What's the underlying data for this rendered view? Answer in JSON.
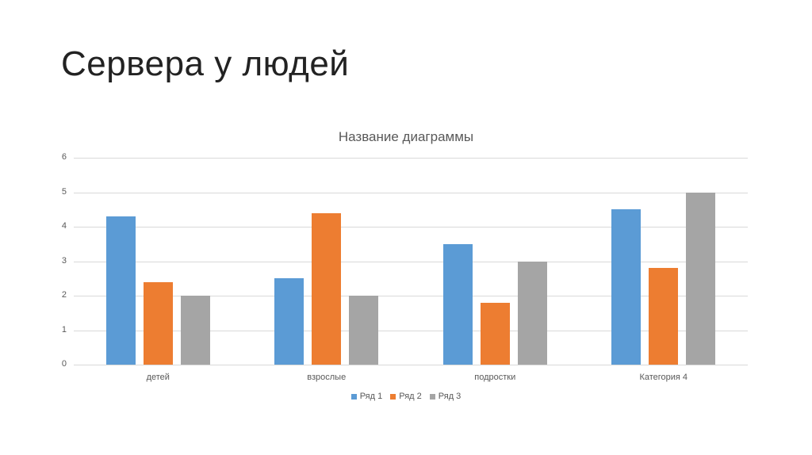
{
  "slide": {
    "title": "Сервера у людей"
  },
  "chart_data": {
    "type": "bar",
    "title": "Название диаграммы",
    "categories": [
      "детей",
      "взрослые",
      "подростки",
      "Категория 4"
    ],
    "series": [
      {
        "name": "Ряд 1",
        "color": "#5b9bd5",
        "values": [
          4.3,
          2.5,
          3.5,
          4.5
        ]
      },
      {
        "name": "Ряд 2",
        "color": "#ed7d31",
        "values": [
          2.4,
          4.4,
          1.8,
          2.8
        ]
      },
      {
        "name": "Ряд 3",
        "color": "#a5a5a5",
        "values": [
          2,
          2,
          3,
          5
        ]
      }
    ],
    "xlabel": "",
    "ylabel": "",
    "ylim": [
      0,
      6
    ],
    "yticks": [
      "0",
      "1",
      "2",
      "3",
      "4",
      "5",
      "6"
    ],
    "grid": true,
    "legend_position": "bottom"
  }
}
